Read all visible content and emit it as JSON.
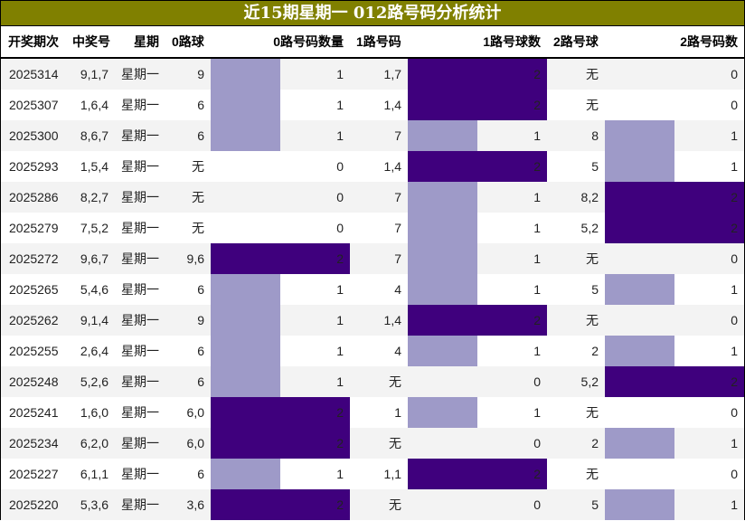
{
  "title": "近15期星期一 012路号码分析统计",
  "colors": {
    "title_bg": "#808000",
    "bar_level1": "#9e9ac8",
    "bar_level2": "#3f007d",
    "row_alt": "#f3f3f3"
  },
  "headers": {
    "period": "开奖期次",
    "numbers": "中奖号",
    "weekday": "星期",
    "r0_balls": "0路球",
    "r0_count": "0路号码数量",
    "r1_balls": "1路号码",
    "r1_count": "1路号球数",
    "r2_balls": "2路号球",
    "r2_count": "2路号码数"
  },
  "rows": [
    {
      "period": "2025314",
      "numbers": "9,1,7",
      "weekday": "星期一",
      "r0": "9",
      "r0n": "1",
      "r1": "1,7",
      "r1n": "2",
      "r2": "无",
      "r2n": "0"
    },
    {
      "period": "2025307",
      "numbers": "1,6,4",
      "weekday": "星期一",
      "r0": "6",
      "r0n": "1",
      "r1": "1,4",
      "r1n": "2",
      "r2": "无",
      "r2n": "0"
    },
    {
      "period": "2025300",
      "numbers": "8,6,7",
      "weekday": "星期一",
      "r0": "6",
      "r0n": "1",
      "r1": "7",
      "r1n": "1",
      "r2": "8",
      "r2n": "1"
    },
    {
      "period": "2025293",
      "numbers": "1,5,4",
      "weekday": "星期一",
      "r0": "无",
      "r0n": "0",
      "r1": "1,4",
      "r1n": "2",
      "r2": "5",
      "r2n": "1"
    },
    {
      "period": "2025286",
      "numbers": "8,2,7",
      "weekday": "星期一",
      "r0": "无",
      "r0n": "0",
      "r1": "7",
      "r1n": "1",
      "r2": "8,2",
      "r2n": "2"
    },
    {
      "period": "2025279",
      "numbers": "7,5,2",
      "weekday": "星期一",
      "r0": "无",
      "r0n": "0",
      "r1": "7",
      "r1n": "1",
      "r2": "5,2",
      "r2n": "2"
    },
    {
      "period": "2025272",
      "numbers": "9,6,7",
      "weekday": "星期一",
      "r0": "9,6",
      "r0n": "2",
      "r1": "7",
      "r1n": "1",
      "r2": "无",
      "r2n": "0"
    },
    {
      "period": "2025265",
      "numbers": "5,4,6",
      "weekday": "星期一",
      "r0": "6",
      "r0n": "1",
      "r1": "4",
      "r1n": "1",
      "r2": "5",
      "r2n": "1"
    },
    {
      "period": "2025262",
      "numbers": "9,1,4",
      "weekday": "星期一",
      "r0": "9",
      "r0n": "1",
      "r1": "1,4",
      "r1n": "2",
      "r2": "无",
      "r2n": "0"
    },
    {
      "period": "2025255",
      "numbers": "2,6,4",
      "weekday": "星期一",
      "r0": "6",
      "r0n": "1",
      "r1": "4",
      "r1n": "1",
      "r2": "2",
      "r2n": "1"
    },
    {
      "period": "2025248",
      "numbers": "5,2,6",
      "weekday": "星期一",
      "r0": "6",
      "r0n": "1",
      "r1": "无",
      "r1n": "0",
      "r2": "5,2",
      "r2n": "2"
    },
    {
      "period": "2025241",
      "numbers": "1,6,0",
      "weekday": "星期一",
      "r0": "6,0",
      "r0n": "2",
      "r1": "1",
      "r1n": "1",
      "r2": "无",
      "r2n": "0"
    },
    {
      "period": "2025234",
      "numbers": "6,2,0",
      "weekday": "星期一",
      "r0": "6,0",
      "r0n": "2",
      "r1": "无",
      "r1n": "0",
      "r2": "2",
      "r2n": "1"
    },
    {
      "period": "2025227",
      "numbers": "6,1,1",
      "weekday": "星期一",
      "r0": "6",
      "r0n": "1",
      "r1": "1,1",
      "r1n": "2",
      "r2": "无",
      "r2n": "0"
    },
    {
      "period": "2025220",
      "numbers": "5,3,6",
      "weekday": "星期一",
      "r0": "3,6",
      "r0n": "2",
      "r1": "无",
      "r1n": "0",
      "r2": "5",
      "r2n": "1"
    }
  ]
}
